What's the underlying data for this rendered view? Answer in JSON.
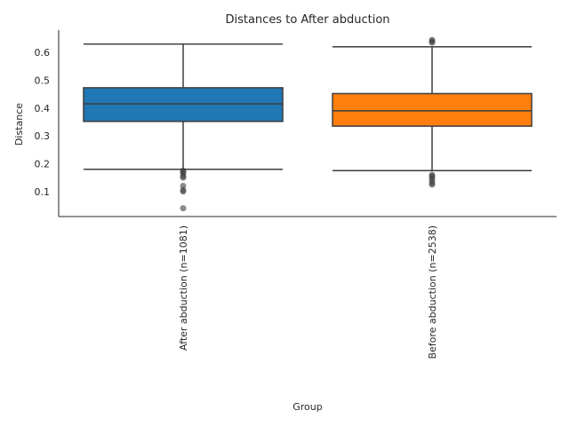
{
  "chart_data": {
    "type": "box",
    "title": "Distances to After abduction",
    "xlabel": "Group",
    "ylabel": "Distance",
    "ylim": [
      0.01,
      0.68
    ],
    "yticks": [
      0.1,
      0.2,
      0.3,
      0.4,
      0.5,
      0.6
    ],
    "ytick_labels": [
      "0.1",
      "0.2",
      "0.3",
      "0.4",
      "0.5",
      "0.6"
    ],
    "grid": false,
    "categories": [
      "After abduction (n=1081)",
      "Before abduction (n=2538)"
    ],
    "boxes": [
      {
        "name": "After abduction (n=1081)",
        "color": "#1f77b4",
        "whisker_low": 0.18,
        "q1": 0.352,
        "median": 0.415,
        "q3": 0.473,
        "whisker_high": 0.63,
        "outliers": [
          0.175,
          0.17,
          0.165,
          0.155,
          0.15,
          0.12,
          0.105,
          0.1,
          0.04
        ]
      },
      {
        "name": "Before abduction (n=2538)",
        "color": "#ff7f0e",
        "whisker_low": 0.175,
        "q1": 0.335,
        "median": 0.39,
        "q3": 0.452,
        "whisker_high": 0.62,
        "outliers": [
          0.645,
          0.64,
          0.635,
          0.16,
          0.155,
          0.148,
          0.14,
          0.13,
          0.125
        ]
      }
    ]
  }
}
